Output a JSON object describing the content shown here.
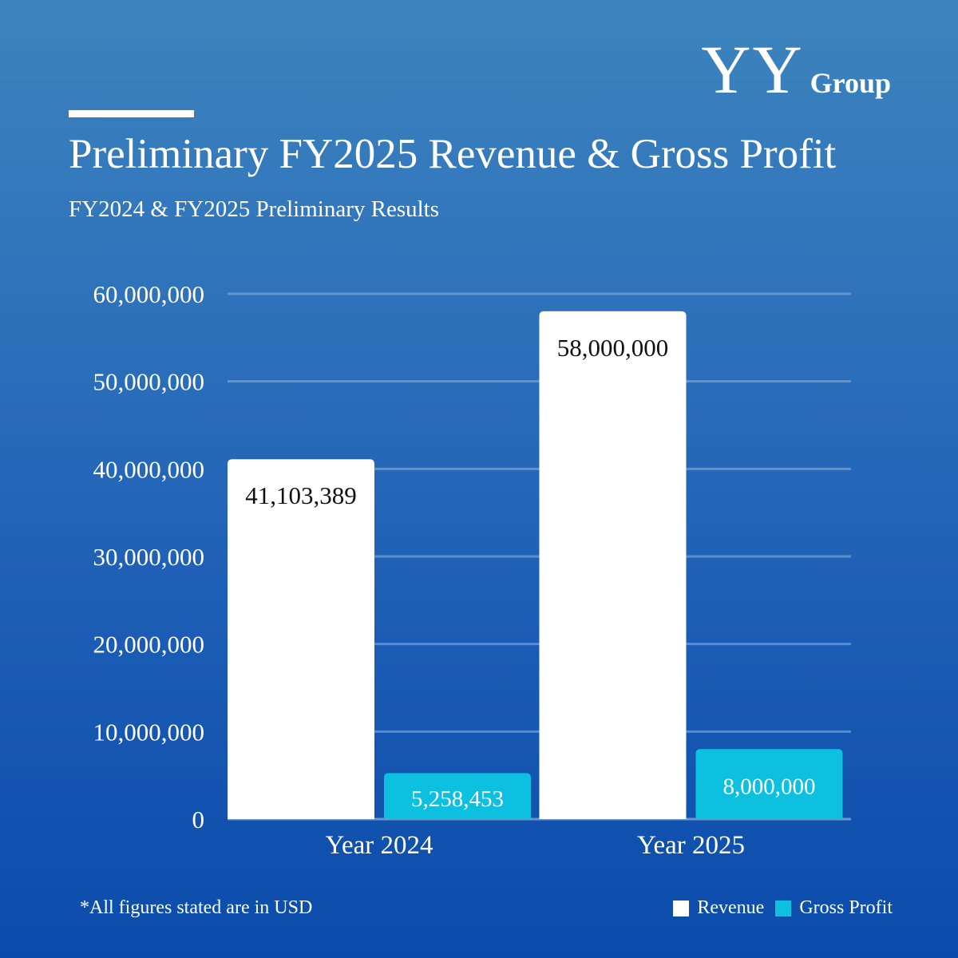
{
  "logo": {
    "mark": "YY",
    "text": "Group"
  },
  "title": "Preliminary FY2025 Revenue & Gross Profit",
  "subtitle": "FY2024 & FY2025 Preliminary Results",
  "footnote": "*All figures stated are in USD",
  "colors": {
    "revenue": "#ffffff",
    "gross_profit": "#0dc0e0",
    "grid": "#8fb6e0"
  },
  "chart_data": {
    "type": "bar",
    "title": "Preliminary FY2025 Revenue & Gross Profit",
    "subtitle": "FY2024 & FY2025 Preliminary Results",
    "categories": [
      "Year 2024",
      "Year 2025"
    ],
    "series": [
      {
        "name": "Revenue",
        "values": [
          41103389,
          58000000
        ],
        "labels": [
          "41,103,389",
          "58,000,000"
        ]
      },
      {
        "name": "Gross Profit",
        "values": [
          5258453,
          8000000
        ],
        "labels": [
          "5,258,453",
          "8,000,000"
        ]
      }
    ],
    "ylim": [
      0,
      60000000
    ],
    "yticks": [
      0,
      10000000,
      20000000,
      30000000,
      40000000,
      50000000,
      60000000
    ],
    "ytick_labels": [
      "0",
      "10,000,000",
      "20,000,000",
      "30,000,000",
      "40,000,000",
      "50,000,000",
      "60,000,000"
    ],
    "grid": true,
    "legend": "bottom-right",
    "xlabel": "",
    "ylabel": ""
  }
}
